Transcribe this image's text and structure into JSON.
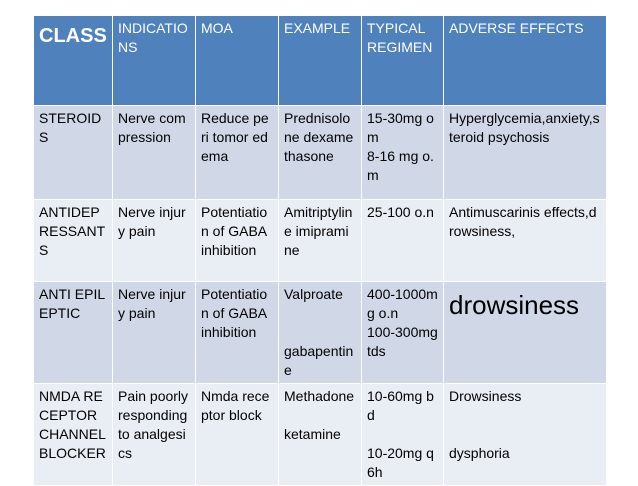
{
  "table": {
    "headers": [
      {
        "label": "CLASS"
      },
      {
        "label": "INDICATIONS"
      },
      {
        "label": "MOA"
      },
      {
        "label": "EXAMPLE"
      },
      {
        "label": "TYPICAL REGIMEN"
      },
      {
        "label": "ADVERSE EFFECTS"
      }
    ],
    "rows": [
      {
        "class": "STEROIDS",
        "indications": "Nerve compression",
        "moa": "Reduce peri tomor edema",
        "example": "Prednisolone dexamethasone",
        "regimen": [
          "15-30mg om",
          "8-16 mg o.m"
        ],
        "adverse": "Hyperglycemia,anxiety,steroid psychosis"
      },
      {
        "class": "ANTIDEPRESSANTS",
        "indications": "Nerve injury pain",
        "moa": "Potentiation of GABA inhibition",
        "example": "Amitriptyline imipramine",
        "regimen": [
          "25-100 o.n"
        ],
        "adverse": "Antimuscarinis effects,drowsiness,"
      },
      {
        "class": "ANTI EPILEPTIC",
        "indications": "Nerve injury pain",
        "moa": "Potentiation of GABA inhibition",
        "example": [
          "Valproate",
          "gabapentine"
        ],
        "regimen": [
          "400-1000mg o.n",
          "100-300mg tds"
        ],
        "adverse": "drowsiness"
      },
      {
        "class": "NMDA RECEPTOR CHANNEL BLOCKER",
        "indications": "Pain poorly responding to analgesics",
        "moa": "Nmda receptor block",
        "example": [
          "Methadone",
          "ketamine"
        ],
        "regimen": [
          "10-60mg bd",
          "10-20mg q6h"
        ],
        "adverse": [
          "Drowsiness",
          "dysphoria"
        ]
      }
    ]
  }
}
